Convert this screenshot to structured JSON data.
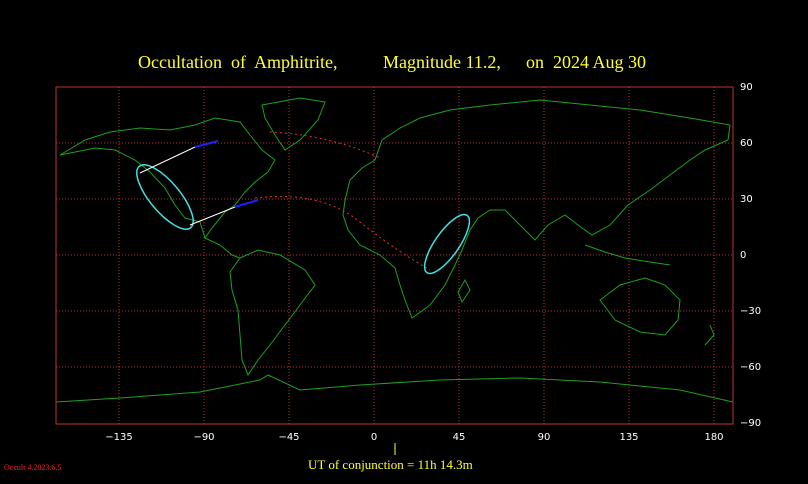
{
  "header": {
    "title_parts": [
      "Occultation  of  Amphitrite,",
      "Magnitude 11.2,",
      "on  2024 Aug 30"
    ]
  },
  "map": {
    "lon_ticks": [
      {
        "value": -135,
        "label": "−135"
      },
      {
        "value": -90,
        "label": "−90"
      },
      {
        "value": -45,
        "label": "−45"
      },
      0,
      45,
      90,
      135,
      180
    ],
    "lat_ticks": [
      90,
      60,
      30,
      0,
      {
        "value": -30,
        "label": "−30"
      },
      {
        "value": -60,
        "label": "−60"
      },
      {
        "value": -90,
        "label": "−90"
      }
    ]
  },
  "footer": {
    "conjunction": "UT of conjunction = 11h 14.3m",
    "version": "Occult 4.2023.6.5"
  }
}
